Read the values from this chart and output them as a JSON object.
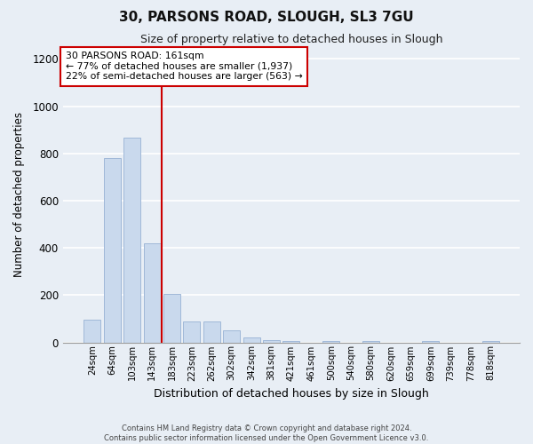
{
  "title": "30, PARSONS ROAD, SLOUGH, SL3 7GU",
  "subtitle": "Size of property relative to detached houses in Slough",
  "xlabel": "Distribution of detached houses by size in Slough",
  "ylabel": "Number of detached properties",
  "bin_labels": [
    "24sqm",
    "64sqm",
    "103sqm",
    "143sqm",
    "183sqm",
    "223sqm",
    "262sqm",
    "302sqm",
    "342sqm",
    "381sqm",
    "421sqm",
    "461sqm",
    "500sqm",
    "540sqm",
    "580sqm",
    "620sqm",
    "659sqm",
    "699sqm",
    "739sqm",
    "778sqm",
    "818sqm"
  ],
  "bar_values": [
    95,
    780,
    865,
    420,
    205,
    90,
    90,
    50,
    20,
    10,
    7,
    0,
    7,
    0,
    7,
    0,
    0,
    7,
    0,
    0,
    7
  ],
  "bar_color": "#c9d9ed",
  "bar_edgecolor": "#a0b8d8",
  "vline_x": 3.5,
  "vline_color": "#cc0000",
  "annotation_line1": "30 PARSONS ROAD: 161sqm",
  "annotation_line2": "← 77% of detached houses are smaller (1,937)",
  "annotation_line3": "22% of semi-detached houses are larger (563) →",
  "annotation_box_edgecolor": "#cc0000",
  "ylim": [
    0,
    1250
  ],
  "yticks": [
    0,
    200,
    400,
    600,
    800,
    1000,
    1200
  ],
  "footnote1": "Contains HM Land Registry data © Crown copyright and database right 2024.",
  "footnote2": "Contains public sector information licensed under the Open Government Licence v3.0.",
  "bg_color": "#e8eef5",
  "plot_bg_color": "#e8eef5"
}
